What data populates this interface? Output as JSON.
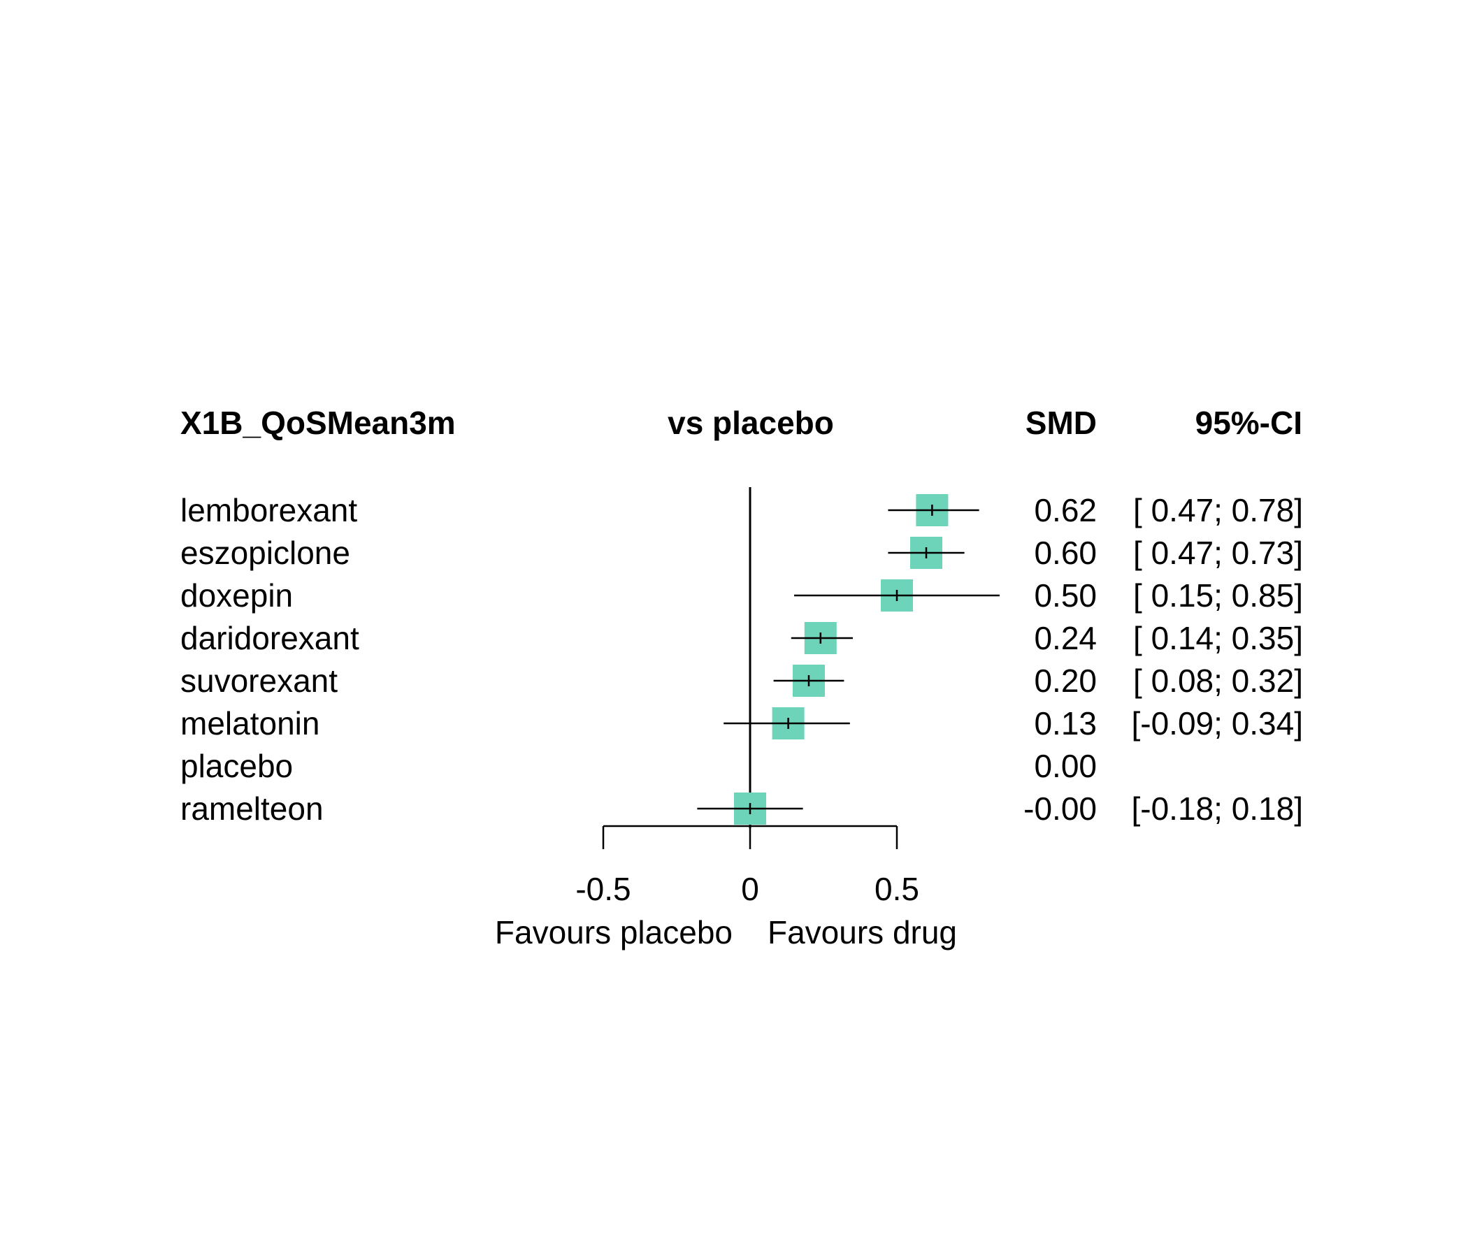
{
  "chart_data": {
    "type": "forest",
    "headers": {
      "outcome": "X1B_QoSMean3m",
      "comparison": "vs placebo",
      "effect": "SMD",
      "ci": "95%-CI"
    },
    "rows": [
      {
        "label": "lemborexant",
        "smd": 0.62,
        "lower": 0.47,
        "upper": 0.78,
        "smd_text": "0.62",
        "ci_text": "[ 0.47; 0.78]"
      },
      {
        "label": "eszopiclone",
        "smd": 0.6,
        "lower": 0.47,
        "upper": 0.73,
        "smd_text": "0.60",
        "ci_text": "[ 0.47; 0.73]"
      },
      {
        "label": "doxepin",
        "smd": 0.5,
        "lower": 0.15,
        "upper": 0.85,
        "smd_text": "0.50",
        "ci_text": "[ 0.15; 0.85]"
      },
      {
        "label": "daridorexant",
        "smd": 0.24,
        "lower": 0.14,
        "upper": 0.35,
        "smd_text": "0.24",
        "ci_text": "[ 0.14; 0.35]"
      },
      {
        "label": "suvorexant",
        "smd": 0.2,
        "lower": 0.08,
        "upper": 0.32,
        "smd_text": "0.20",
        "ci_text": "[ 0.08; 0.32]"
      },
      {
        "label": "melatonin",
        "smd": 0.13,
        "lower": -0.09,
        "upper": 0.34,
        "smd_text": "0.13",
        "ci_text": "[-0.09; 0.34]"
      },
      {
        "label": "placebo",
        "smd": 0.0,
        "lower": null,
        "upper": null,
        "smd_text": "0.00",
        "ci_text": ""
      },
      {
        "label": "ramelteon",
        "smd": 0.0,
        "lower": -0.18,
        "upper": 0.18,
        "smd_text": "-0.00",
        "ci_text": "[-0.18; 0.18]"
      }
    ],
    "x_ticks": [
      -0.5,
      0,
      0.5
    ],
    "x_tick_labels": [
      "-0.5",
      "0",
      "0.5"
    ],
    "xlim": [
      -0.5,
      0.5
    ],
    "reference_line": 0,
    "favours_left": "Favours placebo",
    "favours_right": "Favours drug",
    "marker_color": "#6dd3b9"
  }
}
